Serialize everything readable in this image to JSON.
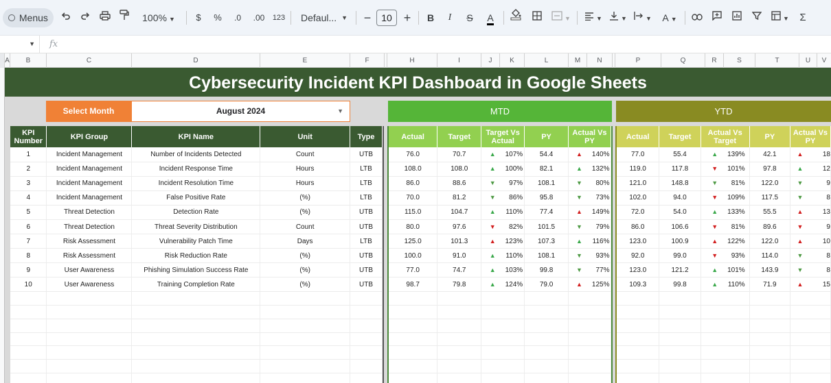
{
  "toolbar": {
    "menus_label": "Menus",
    "zoom": "100%",
    "currency": "$",
    "percent": "%",
    "dec_decrease": ".0",
    "dec_increase": ".00",
    "number_format": "123",
    "font_name": "Defaul...",
    "font_size": "10",
    "bold": "B",
    "italic": "I",
    "strike": "S",
    "text_color": "A",
    "text_rotate": "A",
    "sigma": "Σ"
  },
  "formula_bar": {
    "fx": "fx"
  },
  "columns": [
    "A",
    "B",
    "C",
    "D",
    "E",
    "F",
    "H",
    "I",
    "J",
    "K",
    "L",
    "M",
    "N",
    "P",
    "Q",
    "R",
    "S",
    "T",
    "U"
  ],
  "banner": {
    "title": "Cybersecurity Incident KPI Dashboard in Google Sheets"
  },
  "selector": {
    "label": "Select Month",
    "value": "August 2024"
  },
  "bands": {
    "mtd": "MTD",
    "ytd": "YTD"
  },
  "main_headers": [
    "KPI Number",
    "KPI Group",
    "KPI Name",
    "Unit",
    "Type"
  ],
  "mtd_headers": [
    "Actual",
    "Target",
    "Target Vs Actual",
    "PY",
    "Actual Vs PY"
  ],
  "ytd_headers": [
    "Actual",
    "Target",
    "Actual Vs Target",
    "PY",
    "Actual Vs PY"
  ],
  "colors": {
    "title_green": "#3a5a31",
    "orange": "#f08136",
    "mtd_green": "#55b538",
    "mtd_header": "#92d050",
    "ytd_olive": "#898b22",
    "ytd_header": "#cfd25a",
    "up_green": "#3aa84a",
    "down_red": "#d21f1f"
  },
  "rows": [
    {
      "num": "1",
      "group": "Incident Management",
      "name": "Number of Incidents Detected",
      "unit": "Count",
      "type": "UTB",
      "mtd": {
        "actual": "76.0",
        "target": "70.7",
        "tva": "107%",
        "tva_dir": "up-green",
        "py": "54.4",
        "avp": "140%",
        "avp_dir": "up-red"
      },
      "ytd": {
        "actual": "77.0",
        "target": "55.4",
        "avt": "139%",
        "avt_dir": "up-green",
        "py": "42.1",
        "avp": "18",
        "avp_dir": "up-red"
      }
    },
    {
      "num": "2",
      "group": "Incident Management",
      "name": "Incident Response Time",
      "unit": "Hours",
      "type": "LTB",
      "mtd": {
        "actual": "108.0",
        "target": "108.0",
        "tva": "100%",
        "tva_dir": "up-green",
        "py": "82.1",
        "avp": "132%",
        "avp_dir": "up-green"
      },
      "ytd": {
        "actual": "119.0",
        "target": "117.8",
        "avt": "101%",
        "avt_dir": "down-red",
        "py": "97.8",
        "avp": "12",
        "avp_dir": "up-green"
      }
    },
    {
      "num": "3",
      "group": "Incident Management",
      "name": "Incident Resolution Time",
      "unit": "Hours",
      "type": "LTB",
      "mtd": {
        "actual": "86.0",
        "target": "88.6",
        "tva": "97%",
        "tva_dir": "down-green",
        "py": "108.1",
        "avp": "80%",
        "avp_dir": "down-green"
      },
      "ytd": {
        "actual": "121.0",
        "target": "148.8",
        "avt": "81%",
        "avt_dir": "down-green",
        "py": "122.0",
        "avp": "9",
        "avp_dir": "down-green"
      }
    },
    {
      "num": "4",
      "group": "Incident Management",
      "name": "False Positive Rate",
      "unit": "(%)",
      "type": "LTB",
      "mtd": {
        "actual": "70.0",
        "target": "81.2",
        "tva": "86%",
        "tva_dir": "down-green",
        "py": "95.8",
        "avp": "73%",
        "avp_dir": "down-green"
      },
      "ytd": {
        "actual": "102.0",
        "target": "94.0",
        "avt": "109%",
        "avt_dir": "down-red",
        "py": "117.5",
        "avp": "8",
        "avp_dir": "down-green"
      }
    },
    {
      "num": "5",
      "group": "Threat Detection",
      "name": "Detection Rate",
      "unit": "(%)",
      "type": "UTB",
      "mtd": {
        "actual": "115.0",
        "target": "104.7",
        "tva": "110%",
        "tva_dir": "up-green",
        "py": "77.4",
        "avp": "149%",
        "avp_dir": "up-red"
      },
      "ytd": {
        "actual": "72.0",
        "target": "54.0",
        "avt": "133%",
        "avt_dir": "up-green",
        "py": "55.5",
        "avp": "13",
        "avp_dir": "up-red"
      }
    },
    {
      "num": "6",
      "group": "Threat Detection",
      "name": "Threat Severity Distribution",
      "unit": "Count",
      "type": "UTB",
      "mtd": {
        "actual": "80.0",
        "target": "97.6",
        "tva": "82%",
        "tva_dir": "down-red",
        "py": "101.5",
        "avp": "79%",
        "avp_dir": "down-green"
      },
      "ytd": {
        "actual": "86.0",
        "target": "106.6",
        "avt": "81%",
        "avt_dir": "down-red",
        "py": "89.6",
        "avp": "9",
        "avp_dir": "down-red"
      }
    },
    {
      "num": "7",
      "group": "Risk Assessment",
      "name": "Vulnerability Patch Time",
      "unit": "Days",
      "type": "LTB",
      "mtd": {
        "actual": "125.0",
        "target": "101.3",
        "tva": "123%",
        "tva_dir": "up-red",
        "py": "107.3",
        "avp": "116%",
        "avp_dir": "up-green"
      },
      "ytd": {
        "actual": "123.0",
        "target": "100.9",
        "avt": "122%",
        "avt_dir": "up-red",
        "py": "122.0",
        "avp": "10",
        "avp_dir": "up-red"
      }
    },
    {
      "num": "8",
      "group": "Risk Assessment",
      "name": "Risk Reduction Rate",
      "unit": "(%)",
      "type": "UTB",
      "mtd": {
        "actual": "100.0",
        "target": "91.0",
        "tva": "110%",
        "tva_dir": "up-green",
        "py": "108.1",
        "avp": "93%",
        "avp_dir": "down-green"
      },
      "ytd": {
        "actual": "92.0",
        "target": "99.0",
        "avt": "93%",
        "avt_dir": "down-red",
        "py": "114.0",
        "avp": "8",
        "avp_dir": "down-green"
      }
    },
    {
      "num": "9",
      "group": "User Awareness",
      "name": "Phishing Simulation Success Rate",
      "unit": "(%)",
      "type": "UTB",
      "mtd": {
        "actual": "77.0",
        "target": "74.7",
        "tva": "103%",
        "tva_dir": "up-green",
        "py": "99.8",
        "avp": "77%",
        "avp_dir": "down-green"
      },
      "ytd": {
        "actual": "123.0",
        "target": "121.2",
        "avt": "101%",
        "avt_dir": "up-green",
        "py": "143.9",
        "avp": "8",
        "avp_dir": "down-green"
      }
    },
    {
      "num": "10",
      "group": "User Awareness",
      "name": "Training Completion Rate",
      "unit": "(%)",
      "type": "UTB",
      "mtd": {
        "actual": "98.7",
        "target": "79.8",
        "tva": "124%",
        "tva_dir": "up-green",
        "py": "79.0",
        "avp": "125%",
        "avp_dir": "up-red"
      },
      "ytd": {
        "actual": "109.3",
        "target": "99.8",
        "avt": "110%",
        "avt_dir": "up-green",
        "py": "71.9",
        "avp": "15",
        "avp_dir": "up-red"
      }
    }
  ],
  "empty_rows": 7
}
